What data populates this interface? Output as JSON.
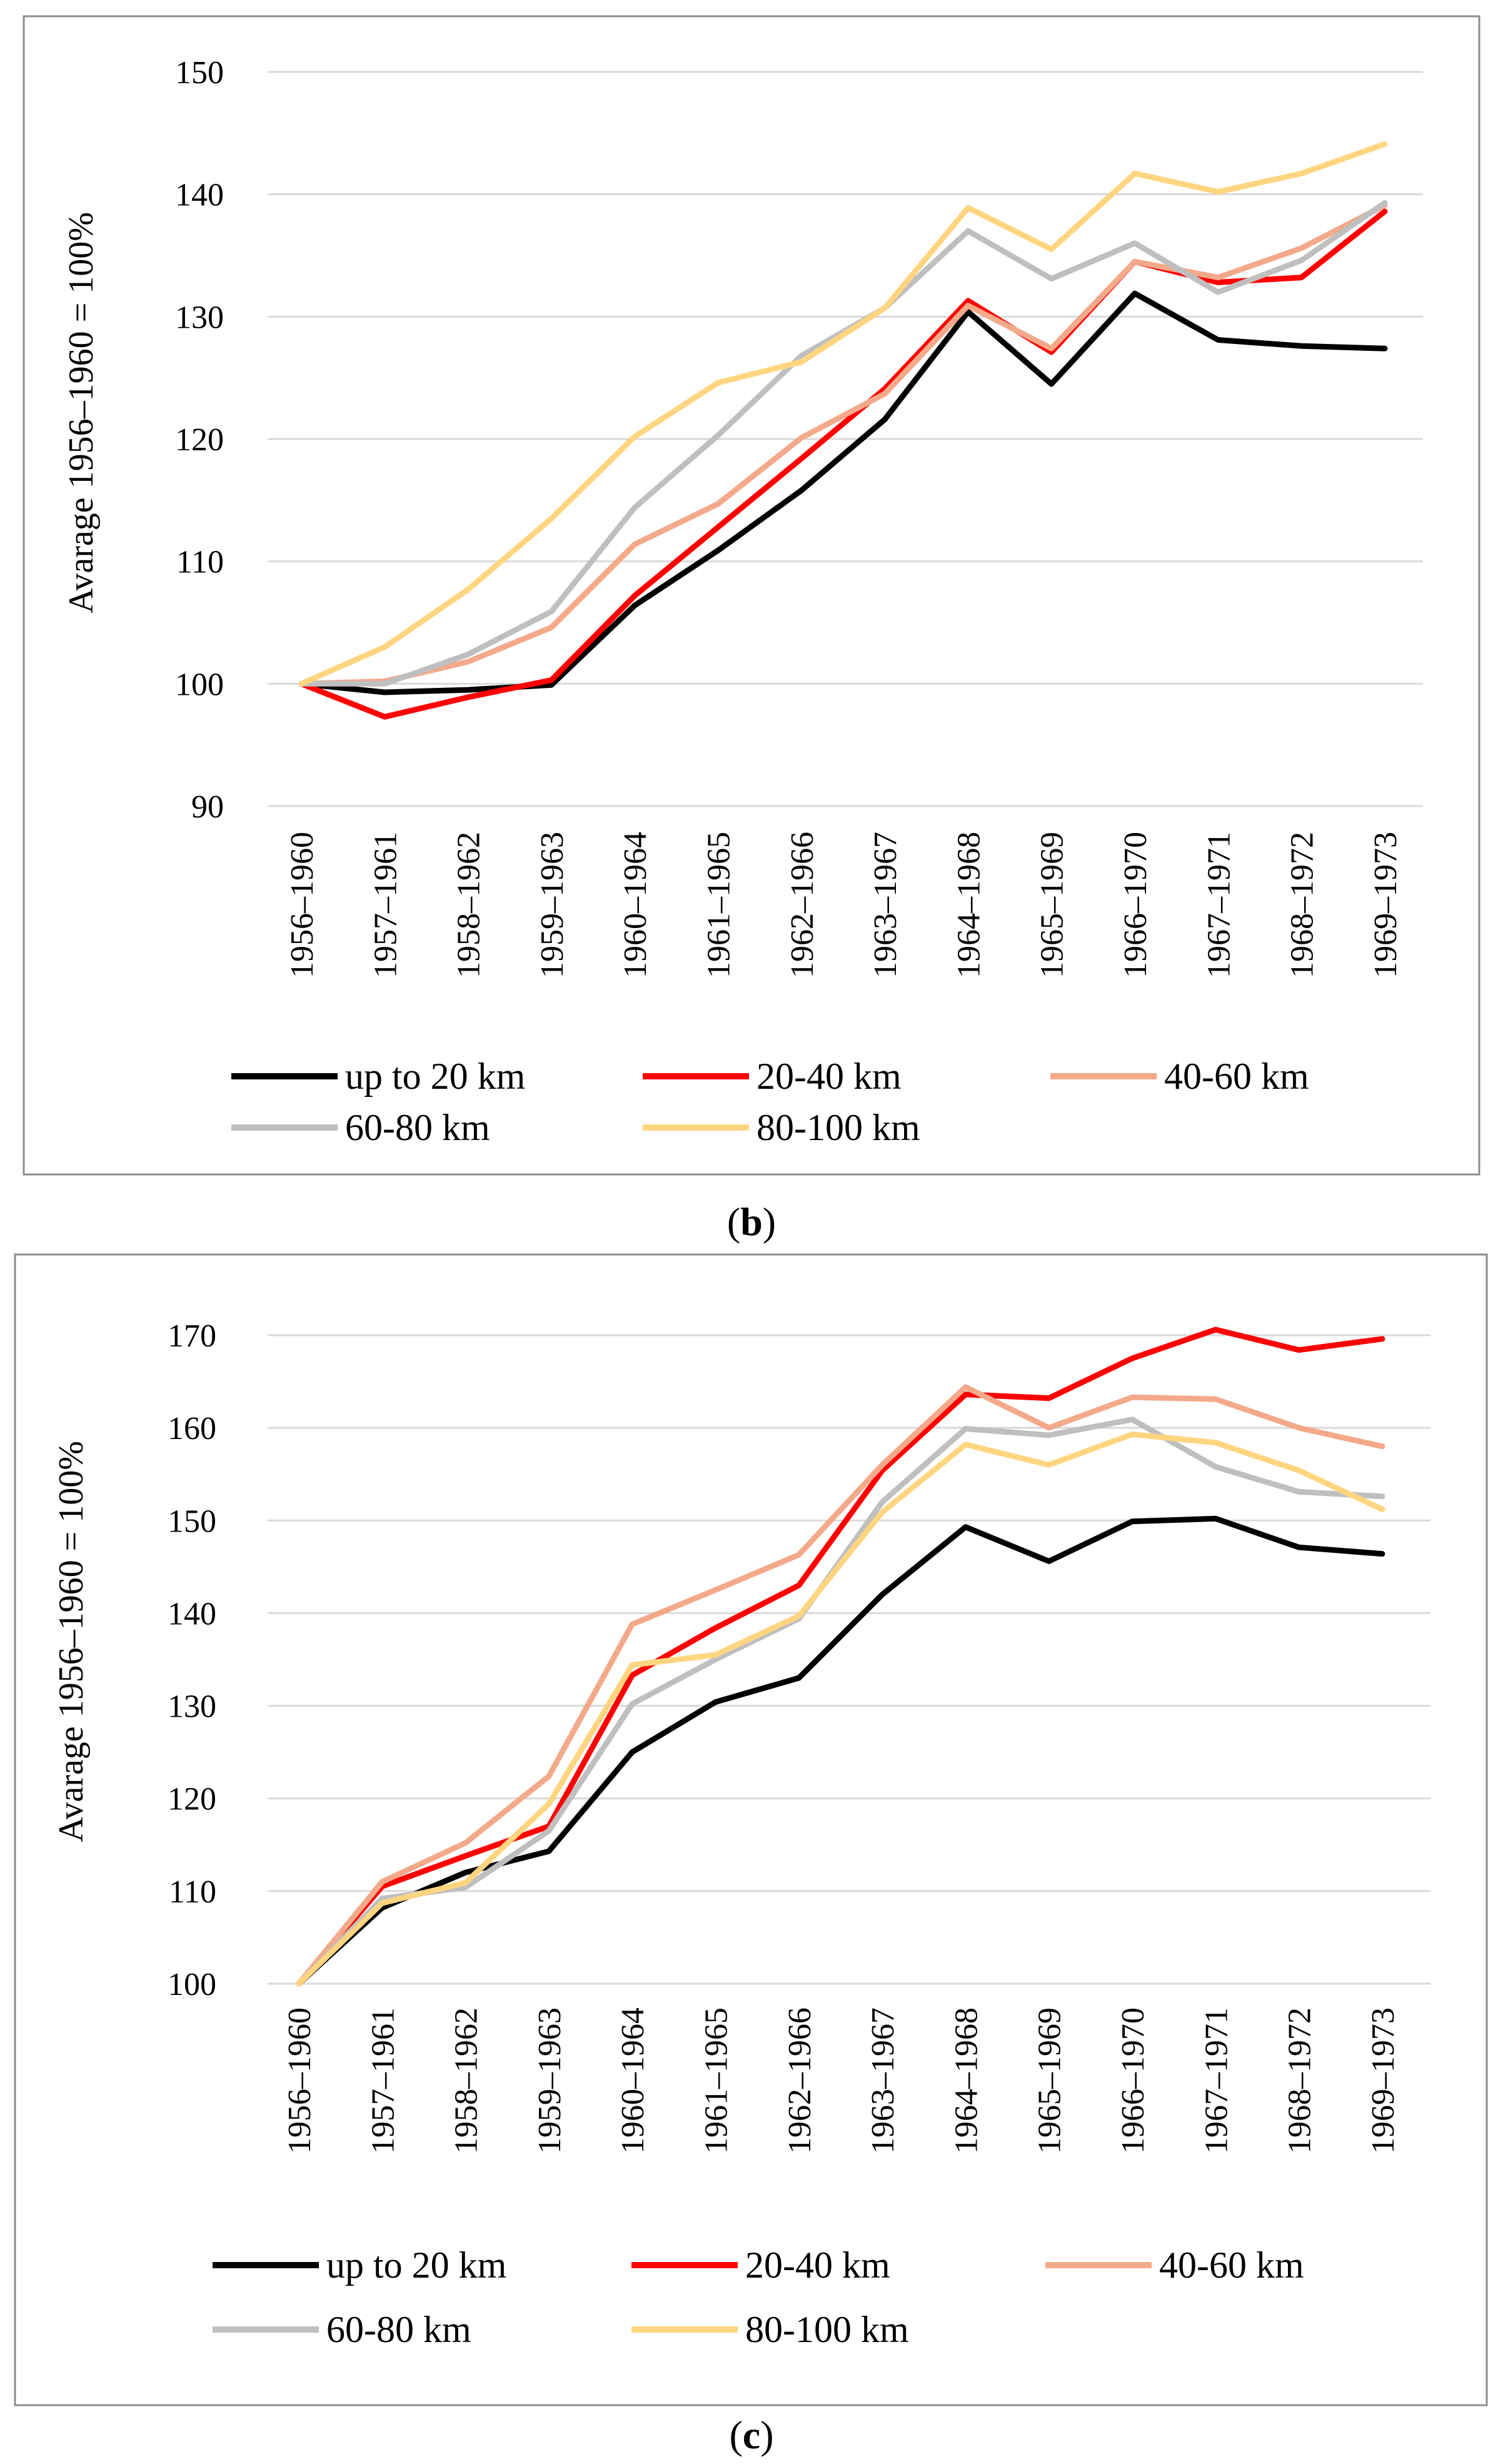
{
  "chart_data": [
    {
      "panel": "b",
      "type": "line",
      "caption_letter": "b",
      "ylabel": "Avarage 1956–1960 = 100%",
      "xlabel": "",
      "ylim": [
        90,
        150
      ],
      "yticks": [
        90,
        100,
        110,
        120,
        130,
        140,
        150
      ],
      "grid": true,
      "legend_position": "bottom",
      "categories": [
        "1956–1960",
        "1957–1961",
        "1958–1962",
        "1959–1963",
        "1960–1964",
        "1961–1965",
        "1962–1966",
        "1963–1967",
        "1964–1968",
        "1965–1969",
        "1966–1970",
        "1967–1971",
        "1968–1972",
        "1969–1973"
      ],
      "series": [
        {
          "name": "up to 20 km",
          "color": "#000000",
          "values": [
            100,
            99.3,
            99.5,
            99.9,
            106.4,
            110.9,
            115.8,
            121.6,
            130.4,
            124.5,
            131.9,
            128.1,
            127.6,
            127.4
          ]
        },
        {
          "name": "20-40 km",
          "color": "#ff0000",
          "values": [
            100,
            97.3,
            98.9,
            100.3,
            107.2,
            112.8,
            118.4,
            124.1,
            131.3,
            127.1,
            134.5,
            132.8,
            133.2,
            138.6
          ]
        },
        {
          "name": "40-60 km",
          "color": "#f4a98a",
          "values": [
            100,
            100.2,
            101.8,
            104.6,
            111.4,
            114.7,
            120.1,
            123.7,
            130.9,
            127.4,
            134.5,
            133.2,
            135.6,
            139.1
          ]
        },
        {
          "name": "60-80 km",
          "color": "#bfbfbf",
          "values": [
            100,
            100.0,
            102.4,
            105.9,
            114.4,
            120.3,
            126.8,
            130.7,
            137.0,
            133.1,
            136.0,
            132.0,
            134.6,
            139.3
          ]
        },
        {
          "name": "80-100 km",
          "color": "#ffd580",
          "values": [
            100,
            103.0,
            107.7,
            113.5,
            120.2,
            124.6,
            126.3,
            130.7,
            138.9,
            135.5,
            141.7,
            140.2,
            141.7,
            144.1
          ]
        }
      ]
    },
    {
      "panel": "c",
      "type": "line",
      "caption_letter": "c",
      "ylabel": "Avarage 1956–1960 = 100%",
      "xlabel": "",
      "ylim": [
        100,
        170
      ],
      "yticks": [
        100,
        110,
        120,
        130,
        140,
        150,
        160,
        170
      ],
      "grid": true,
      "legend_position": "bottom",
      "categories": [
        "1956–1960",
        "1957–1961",
        "1958–1962",
        "1959–1963",
        "1960–1964",
        "1961–1965",
        "1962–1966",
        "1963–1967",
        "1964–1968",
        "1965–1969",
        "1966–1970",
        "1967–1971",
        "1968–1972",
        "1969–1973"
      ],
      "series": [
        {
          "name": "up to 20 km",
          "color": "#000000",
          "values": [
            100,
            108.2,
            112.0,
            114.3,
            125.0,
            130.4,
            133.0,
            142.0,
            149.3,
            145.6,
            149.9,
            150.2,
            147.1,
            146.4
          ]
        },
        {
          "name": "20-40 km",
          "color": "#ff0000",
          "values": [
            100,
            110.5,
            113.8,
            117.0,
            133.3,
            138.4,
            143.0,
            155.4,
            163.6,
            163.2,
            167.5,
            170.6,
            168.4,
            169.6
          ]
        },
        {
          "name": "40-60 km",
          "color": "#f4a98a",
          "values": [
            100,
            111.0,
            115.2,
            122.4,
            138.8,
            142.5,
            146.3,
            156.0,
            164.4,
            160.0,
            163.3,
            163.1,
            160.0,
            158.0
          ]
        },
        {
          "name": "60-80 km",
          "color": "#bfbfbf",
          "values": [
            100,
            109.2,
            110.4,
            116.5,
            130.2,
            135.0,
            139.4,
            152.0,
            159.9,
            159.2,
            160.9,
            155.8,
            153.1,
            152.6
          ]
        },
        {
          "name": "80-100 km",
          "color": "#ffd580",
          "values": [
            100,
            108.7,
            110.9,
            119.4,
            134.4,
            135.5,
            139.7,
            150.9,
            158.2,
            156.0,
            159.3,
            158.4,
            155.4,
            151.2
          ]
        }
      ]
    }
  ]
}
